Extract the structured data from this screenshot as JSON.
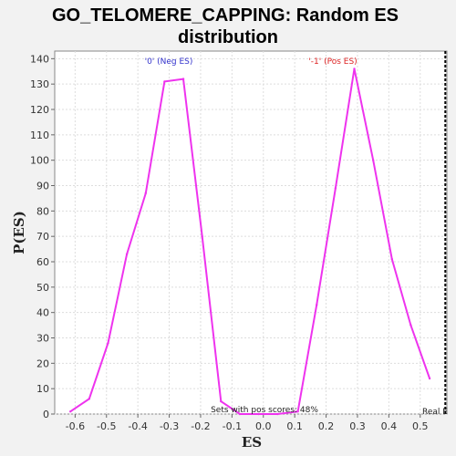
{
  "chart_data": {
    "type": "line",
    "title_line1": "GO_TELOMERE_CAPPING: Random ES",
    "title_line2": "distribution",
    "xlabel": "ES",
    "ylabel": "P(ES)",
    "xlim": [
      -0.665,
      0.585
    ],
    "ylim": [
      0,
      143
    ],
    "x_ticks": [
      -0.6,
      -0.5,
      -0.4,
      -0.3,
      -0.2,
      -0.1,
      0.0,
      0.1,
      0.2,
      0.3,
      0.4,
      0.5
    ],
    "x_tick_labels": [
      "-0.6",
      "-0.5",
      "-0.4",
      "-0.3",
      "-0.2",
      "-0.1",
      "0.0",
      "0.1",
      "0.2",
      "0.3",
      "0.4",
      "0.5"
    ],
    "y_ticks": [
      0,
      10,
      20,
      30,
      40,
      50,
      60,
      70,
      80,
      90,
      100,
      110,
      120,
      130,
      140
    ],
    "y_tick_labels": [
      "0",
      "10",
      "20",
      "30",
      "40",
      "50",
      "60",
      "70",
      "80",
      "90",
      "100",
      "110",
      "120",
      "130",
      "140"
    ],
    "grid": true,
    "series": [
      {
        "color": "#ee33ee",
        "x": [
          -0.615,
          -0.555,
          -0.495,
          -0.435,
          -0.375,
          -0.315,
          -0.255,
          -0.195,
          -0.135,
          -0.075,
          -0.015,
          0.045,
          0.11,
          0.17,
          0.23,
          0.29,
          0.35,
          0.41,
          0.47,
          0.53
        ],
        "y": [
          1,
          6,
          28,
          63,
          87,
          131,
          132,
          70,
          5,
          0,
          0,
          0,
          1,
          43,
          89,
          136,
          100,
          61,
          35,
          14
        ]
      }
    ],
    "annotations": {
      "neg_label": "'0' (Neg ES)",
      "neg_color": "#3333cc",
      "pos_label": "'-1' (Pos ES)",
      "pos_color": "#dd2222",
      "sets_label": "Sets with pos scores: 48%",
      "real_label": "Real E"
    },
    "real_es_marker_x": 0.58
  }
}
